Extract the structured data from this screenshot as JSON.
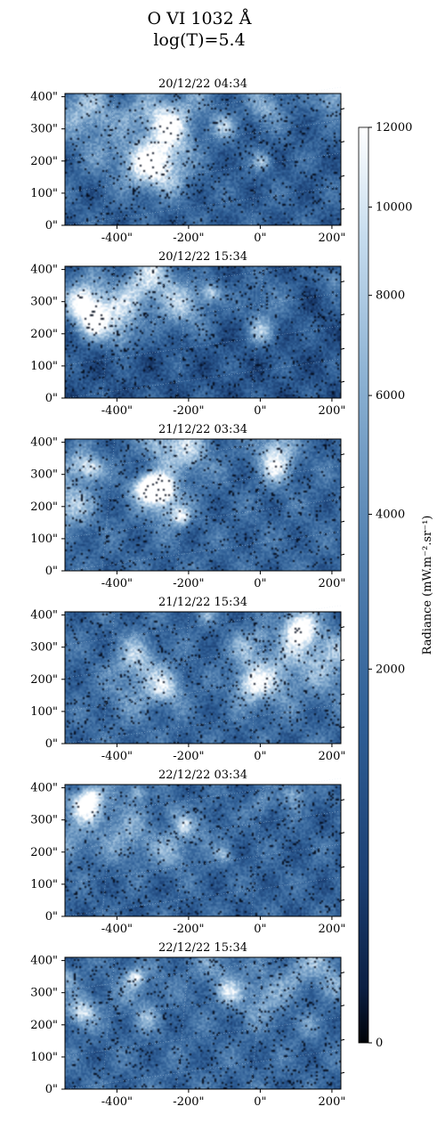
{
  "figure": {
    "title_line1": "O VI 1032 Å",
    "title_line2": "log(T)=5.4"
  },
  "colorbar": {
    "label": "Radiance (mW.m⁻².sr⁻¹)",
    "ticks": [
      "12000",
      "10000",
      "8000",
      "6000",
      "4000",
      "2000",
      "0"
    ],
    "tick_values": [
      12000,
      10000,
      8000,
      6000,
      4000,
      2000,
      0
    ],
    "scale": "sqrt",
    "colormap": [
      "#000308",
      "#0b1f43",
      "#1b3f73",
      "#2f5f96",
      "#5684b3",
      "#8ab0d2",
      "#c6dcee",
      "#ffffff"
    ]
  },
  "chart_data": {
    "type": "heatmap",
    "x_ticks": [
      "-400\"",
      "-200\"",
      "0\"",
      "200\""
    ],
    "x_tick_values": [
      -400,
      -200,
      0,
      200
    ],
    "y_ticks": [
      "400\"",
      "300\"",
      "200\"",
      "100\"",
      "0\""
    ],
    "y_tick_values": [
      400,
      300,
      200,
      100,
      0
    ],
    "xlim": [
      -545,
      225
    ],
    "ylim": [
      0,
      410
    ],
    "panels": [
      {
        "title": "20/12/22 04:34",
        "seed": 11,
        "mean": 0.36
      },
      {
        "title": "20/12/22 15:34",
        "seed": 23,
        "mean": 0.3
      },
      {
        "title": "21/12/22 03:34",
        "seed": 37,
        "mean": 0.4
      },
      {
        "title": "21/12/22 15:34",
        "seed": 41,
        "mean": 0.4
      },
      {
        "title": "22/12/22 03:34",
        "seed": 53,
        "mean": 0.38
      },
      {
        "title": "22/12/22 15:34",
        "seed": 67,
        "mean": 0.41
      }
    ]
  }
}
